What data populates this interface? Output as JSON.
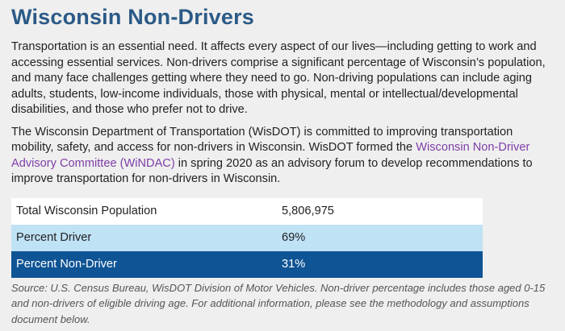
{
  "title": "Wisconsin Non-Drivers",
  "paragraph1": "Transportation is an essential need. It affects every aspect of our lives—including getting to work and accessing essential services. Non-drivers comprise a significant percentage of Wisconsin’s population, and many face challenges getting where they need to go. Non-driving populations can include aging adults, students, low-income individuals, those with physical, mental or intellectual/developmental disabilities, and those who prefer not to drive.",
  "paragraph2": {
    "before_link": "The Wisconsin Department of Transportation (WisDOT) is committed to improving transportation mobility, safety, and access for non-drivers in Wisconsin. WisDOT formed the ",
    "link_text": "Wisconsin Non-Driver Advisory Committee (WiNDAC)",
    "after_link": " in spring 2020 as an advisory forum to develop recommendations to improve transportation for non-drivers in Wisconsin."
  },
  "stats_table": {
    "rows": [
      {
        "label": "Total Wisconsin Population",
        "value": "5,806,975"
      },
      {
        "label": "Percent Driver",
        "value": "69%"
      },
      {
        "label": "Percent Non-Driver",
        "value": "31%"
      }
    ]
  },
  "source_note": "Source: U.S. Census Bureau, WisDOT Division of Motor Vehicles. Non-driver percentage includes those aged 0-15 and non-drivers of eligible driving age. For additional information, please see the methodology and assumptions document below.",
  "colors": {
    "title": "#2b5a87",
    "link": "#7e3ea7",
    "row_light": "#bfe2f5",
    "row_dark": "#0f5494"
  }
}
